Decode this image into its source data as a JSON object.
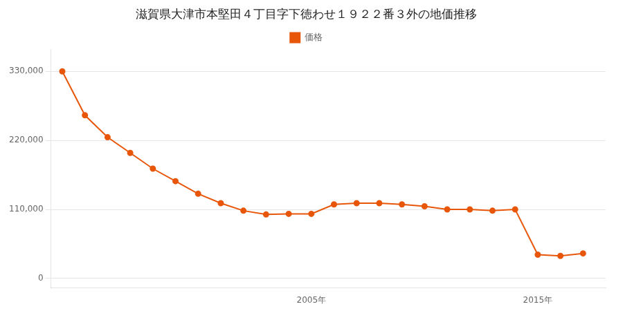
{
  "chart_data": {
    "type": "line",
    "title": "滋賀県大津市本堅田４丁目字下徳わせ１９２２番３外の地価推移",
    "x": [
      1994,
      1995,
      1996,
      1997,
      1998,
      1999,
      2000,
      2001,
      2002,
      2003,
      2004,
      2005,
      2006,
      2007,
      2008,
      2009,
      2010,
      2011,
      2012,
      2013,
      2014,
      2015,
      2016,
      2017
    ],
    "series": [
      {
        "name": "価格",
        "color": "#e8560a",
        "marker": "circle",
        "values": [
          330000,
          260000,
          225000,
          200000,
          175000,
          155000,
          135000,
          120000,
          108000,
          102000,
          103000,
          103000,
          118000,
          120000,
          120000,
          118000,
          115000,
          110000,
          110000,
          108000,
          110000,
          38000,
          36000,
          40000
        ]
      }
    ],
    "xlim": [
      1993.5,
      2018
    ],
    "xticks": [
      {
        "value": 2005,
        "label": "2005年"
      },
      {
        "value": 2015,
        "label": "2015年"
      }
    ],
    "ylim": [
      -15000,
      365000
    ],
    "yticks": [
      0,
      {
        "value": 110000,
        "label": "110,000"
      },
      {
        "value": 220000,
        "label": "220,000"
      },
      {
        "value": 330000,
        "label": "330,000"
      }
    ],
    "grid": "y",
    "legend": "top"
  }
}
